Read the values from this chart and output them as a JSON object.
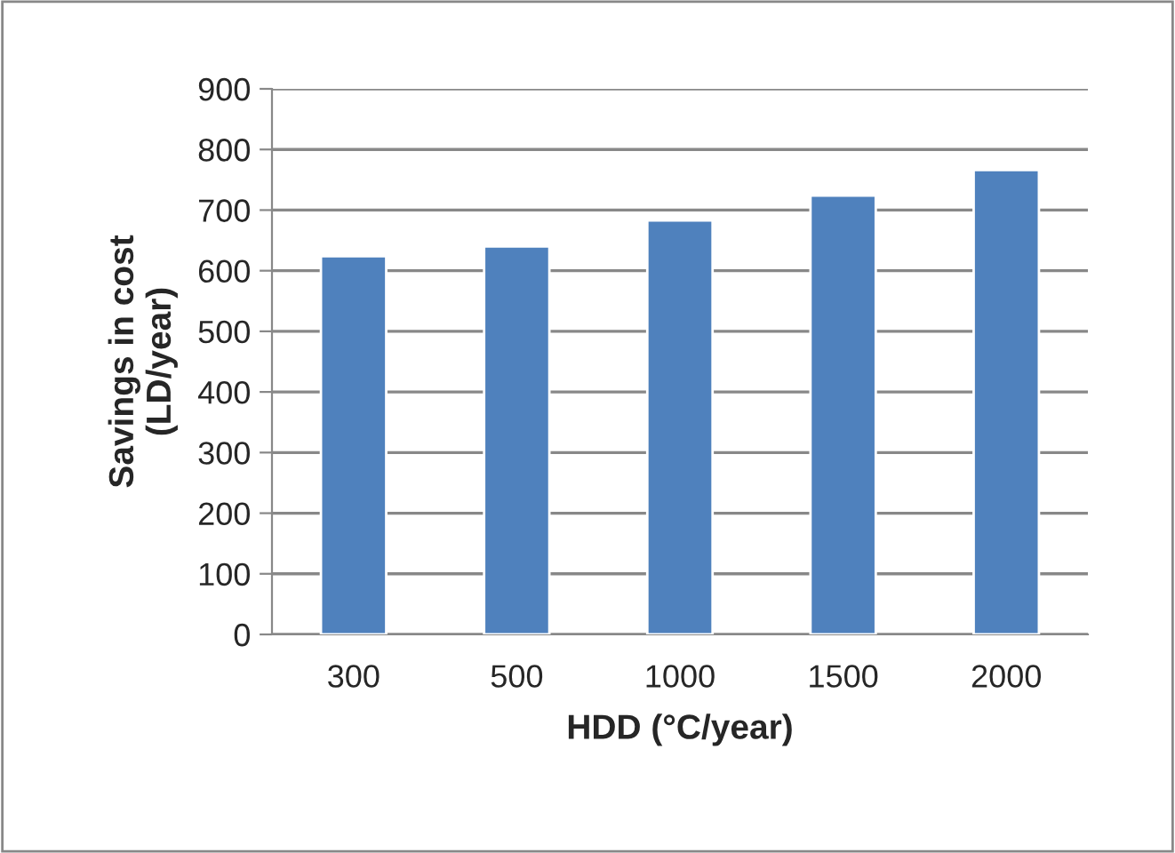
{
  "chart_data": {
    "type": "bar",
    "xlabel": "HDD (°C/year)",
    "ylabel": "Savings in cost\n(LD/year)",
    "categories": [
      "300",
      "500",
      "1000",
      "1500",
      "2000"
    ],
    "series": [
      {
        "color": "#4f81bd",
        "values": [
          624,
          640,
          683,
          724,
          766
        ]
      }
    ],
    "ylim": [
      0,
      900
    ],
    "yticks": [
      0,
      100,
      200,
      300,
      400,
      500,
      600,
      700,
      800,
      900
    ],
    "grid": "y",
    "legend": false
  }
}
